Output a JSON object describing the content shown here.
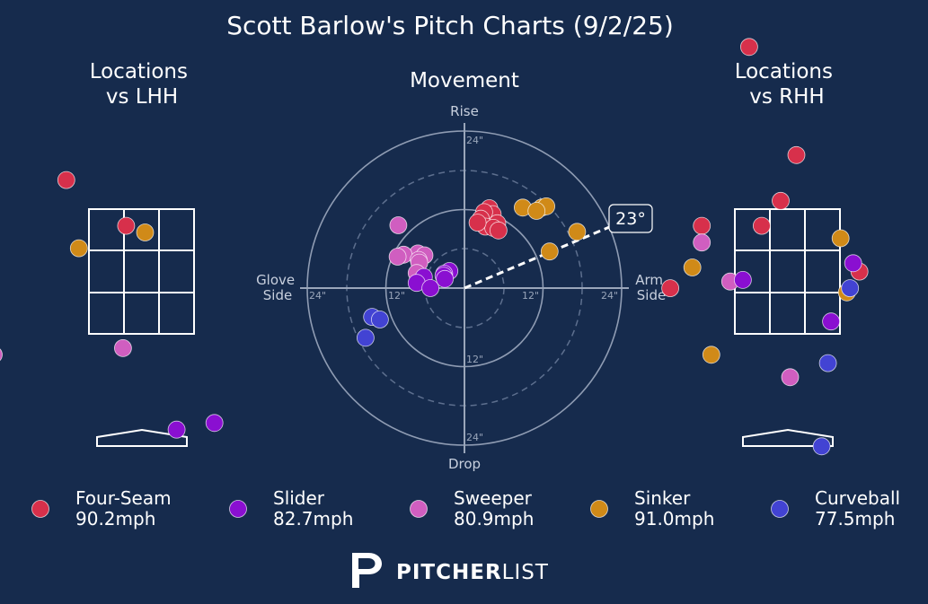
{
  "title": "Scott Barlow's Pitch Charts (9/2/25)",
  "brand": {
    "bold": "PITCHER",
    "light": "LIST"
  },
  "colors": {
    "background": "#162b4d",
    "Four-Seam": "#d7304b",
    "Slider": "#8a0fd1",
    "Sweeper": "#d05ec0",
    "Sinker": "#d08a18",
    "Curveball": "#4243d3"
  },
  "legend": [
    {
      "pitch": "Four-Seam",
      "speed": "90.2mph"
    },
    {
      "pitch": "Slider",
      "speed": "82.7mph"
    },
    {
      "pitch": "Sweeper",
      "speed": "80.9mph"
    },
    {
      "pitch": "Sinker",
      "speed": "91.0mph"
    },
    {
      "pitch": "Curveball",
      "speed": "77.5mph"
    }
  ],
  "chart_data": [
    {
      "type": "scatter",
      "title": "Locations\nvs LHH",
      "x_range": [
        -2.5,
        2.5
      ],
      "y_range": [
        -0.4,
        5.5
      ],
      "points": [
        {
          "pitch": "Four-Seam",
          "x": -1.2,
          "y": 3.1
        },
        {
          "pitch": "Four-Seam",
          "x": -0.25,
          "y": 2.55
        },
        {
          "pitch": "Sinker",
          "x": 0.05,
          "y": 2.47
        },
        {
          "pitch": "Sinker",
          "x": -1.0,
          "y": 2.28
        },
        {
          "pitch": "Sweeper",
          "x": -0.3,
          "y": 1.08
        },
        {
          "pitch": "Sweeper",
          "x": -2.35,
          "y": 1.0
        },
        {
          "pitch": "Slider",
          "x": 0.55,
          "y": 0.1
        },
        {
          "pitch": "Slider",
          "x": 1.15,
          "y": 0.18
        }
      ]
    },
    {
      "type": "scatter",
      "title": "Movement",
      "axis_labels": {
        "top": "Rise",
        "bottom": "Drop",
        "left": "Glove\nSide",
        "right": "Arm\nSide"
      },
      "ring_labels": [
        "24\"",
        "12\""
      ],
      "x_range": [
        -24,
        24
      ],
      "y_range": [
        -24,
        24
      ],
      "arm_angle": "23°",
      "points": [
        {
          "pitch": "Four-Seam",
          "x": 3.8,
          "y": 12.2
        },
        {
          "pitch": "Four-Seam",
          "x": 4.3,
          "y": 11.3
        },
        {
          "pitch": "Four-Seam",
          "x": 3.0,
          "y": 11.6
        },
        {
          "pitch": "Four-Seam",
          "x": 2.5,
          "y": 10.6
        },
        {
          "pitch": "Four-Seam",
          "x": 5.0,
          "y": 9.9
        },
        {
          "pitch": "Four-Seam",
          "x": 3.2,
          "y": 9.4
        },
        {
          "pitch": "Four-Seam",
          "x": 4.4,
          "y": 9.2
        },
        {
          "pitch": "Four-Seam",
          "x": 5.2,
          "y": 8.8
        },
        {
          "pitch": "Four-Seam",
          "x": 2.0,
          "y": 10.0
        },
        {
          "pitch": "Sinker",
          "x": 8.9,
          "y": 12.3
        },
        {
          "pitch": "Sinker",
          "x": 11.8,
          "y": 12.3
        },
        {
          "pitch": "Sinker",
          "x": 12.5,
          "y": 12.5
        },
        {
          "pitch": "Sinker",
          "x": 11.0,
          "y": 11.8
        },
        {
          "pitch": "Sinker",
          "x": 17.2,
          "y": 8.6
        },
        {
          "pitch": "Sinker",
          "x": 13.0,
          "y": 5.6
        },
        {
          "pitch": "Sweeper",
          "x": -10.1,
          "y": 9.6
        },
        {
          "pitch": "Sweeper",
          "x": -7.1,
          "y": 5.3
        },
        {
          "pitch": "Sweeper",
          "x": -6.1,
          "y": 5.0
        },
        {
          "pitch": "Sweeper",
          "x": -9.3,
          "y": 5.1
        },
        {
          "pitch": "Sweeper",
          "x": -10.2,
          "y": 4.8
        },
        {
          "pitch": "Sweeper",
          "x": -7.0,
          "y": 4.3
        },
        {
          "pitch": "Sweeper",
          "x": -6.9,
          "y": 3.9
        },
        {
          "pitch": "Sweeper",
          "x": -7.3,
          "y": 2.3
        },
        {
          "pitch": "Slider",
          "x": -2.3,
          "y": 2.6
        },
        {
          "pitch": "Slider",
          "x": -3.1,
          "y": 2.2
        },
        {
          "pitch": "Slider",
          "x": -6.2,
          "y": 1.7
        },
        {
          "pitch": "Slider",
          "x": -3.2,
          "y": 1.9
        },
        {
          "pitch": "Slider",
          "x": -7.3,
          "y": 0.8
        },
        {
          "pitch": "Slider",
          "x": -5.2,
          "y": 0.0
        },
        {
          "pitch": "Slider",
          "x": -3.0,
          "y": 1.4
        },
        {
          "pitch": "Curveball",
          "x": -14.1,
          "y": -4.4
        },
        {
          "pitch": "Curveball",
          "x": -12.9,
          "y": -4.8
        },
        {
          "pitch": "Curveball",
          "x": -15.1,
          "y": -7.6
        }
      ]
    },
    {
      "type": "scatter",
      "title": "Locations\nvs RHH",
      "x_range": [
        -2.5,
        2.5
      ],
      "y_range": [
        -0.4,
        5.5
      ],
      "points": [
        {
          "pitch": "Four-Seam",
          "x": -0.6,
          "y": 4.7
        },
        {
          "pitch": "Four-Seam",
          "x": 0.15,
          "y": 3.4
        },
        {
          "pitch": "Four-Seam",
          "x": -0.1,
          "y": 2.85
        },
        {
          "pitch": "Four-Seam",
          "x": -1.35,
          "y": 2.55
        },
        {
          "pitch": "Four-Seam",
          "x": -0.4,
          "y": 2.55
        },
        {
          "pitch": "Four-Seam",
          "x": 1.15,
          "y": 2.0
        },
        {
          "pitch": "Four-Seam",
          "x": -1.85,
          "y": 1.8
        },
        {
          "pitch": "Sinker",
          "x": 0.85,
          "y": 2.4
        },
        {
          "pitch": "Sinker",
          "x": -1.5,
          "y": 2.05
        },
        {
          "pitch": "Sinker",
          "x": 0.95,
          "y": 1.75
        },
        {
          "pitch": "Sinker",
          "x": -1.2,
          "y": 1.0
        },
        {
          "pitch": "Sweeper",
          "x": -1.35,
          "y": 2.35
        },
        {
          "pitch": "Sweeper",
          "x": -0.9,
          "y": 1.88
        },
        {
          "pitch": "Sweeper",
          "x": 0.05,
          "y": 0.73
        },
        {
          "pitch": "Slider",
          "x": 1.05,
          "y": 2.1
        },
        {
          "pitch": "Slider",
          "x": -0.7,
          "y": 1.9
        },
        {
          "pitch": "Slider",
          "x": 0.7,
          "y": 1.4
        },
        {
          "pitch": "Curveball",
          "x": 1.0,
          "y": 1.8
        },
        {
          "pitch": "Curveball",
          "x": 0.65,
          "y": 0.9
        },
        {
          "pitch": "Curveball",
          "x": 0.55,
          "y": -0.1
        }
      ]
    }
  ]
}
